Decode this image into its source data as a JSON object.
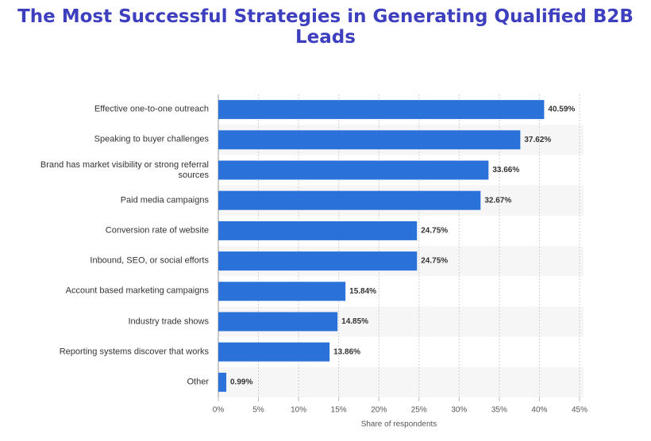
{
  "chart_data": {
    "type": "bar",
    "orientation": "horizontal",
    "title": "The Most Successful Strategies in Generating Qualified B2B Leads",
    "x_label": "Share of respondents",
    "categories": [
      "Effective one-to-one outreach",
      "Speaking to buyer challenges",
      "Brand has market visibility or strong referral sources",
      "Paid media campaigns",
      "Conversion rate of website",
      "Inbound, SEO, or social efforts",
      "Account based marketing campaigns",
      "Industry trade shows",
      "Reporting systems discover that works",
      "Other"
    ],
    "values": [
      40.59,
      37.62,
      33.66,
      32.67,
      24.75,
      24.75,
      15.84,
      14.85,
      13.86,
      0.99
    ],
    "value_labels": [
      "40.59%",
      "37.62%",
      "33.66%",
      "32.67%",
      "24.75%",
      "24.75%",
      "15.84%",
      "14.85%",
      "13.86%",
      "0.99%"
    ],
    "color": "#2a72d9",
    "xlim": [
      0,
      45
    ],
    "xticks": [
      {
        "value": 0,
        "label": "0%"
      },
      {
        "value": 5,
        "label": "5%"
      },
      {
        "value": 10,
        "label": "10%"
      },
      {
        "value": 15,
        "label": "15%"
      },
      {
        "value": 20,
        "label": "20%"
      },
      {
        "value": 25,
        "label": "25%"
      },
      {
        "value": 30,
        "label": "30%"
      },
      {
        "value": 35,
        "label": "35%"
      },
      {
        "value": 40,
        "label": "40%"
      },
      {
        "value": 45,
        "label": "45%"
      }
    ],
    "grid": true
  }
}
